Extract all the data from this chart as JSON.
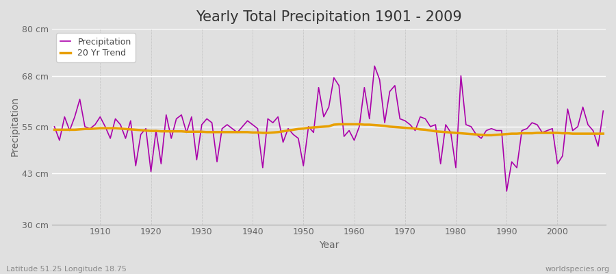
{
  "title": "Yearly Total Precipitation 1901 - 2009",
  "xlabel": "Year",
  "ylabel": "Precipitation",
  "subtitle": "Latitude 51.25 Longitude 18.75",
  "watermark": "worldspecies.org",
  "years": [
    1901,
    1902,
    1903,
    1904,
    1905,
    1906,
    1907,
    1908,
    1909,
    1910,
    1911,
    1912,
    1913,
    1914,
    1915,
    1916,
    1917,
    1918,
    1919,
    1920,
    1921,
    1922,
    1923,
    1924,
    1925,
    1926,
    1927,
    1928,
    1929,
    1930,
    1931,
    1932,
    1933,
    1934,
    1935,
    1936,
    1937,
    1938,
    1939,
    1940,
    1941,
    1942,
    1943,
    1944,
    1945,
    1946,
    1947,
    1948,
    1949,
    1950,
    1951,
    1952,
    1953,
    1954,
    1955,
    1956,
    1957,
    1958,
    1959,
    1960,
    1961,
    1962,
    1963,
    1964,
    1965,
    1966,
    1967,
    1968,
    1969,
    1970,
    1971,
    1972,
    1973,
    1974,
    1975,
    1976,
    1977,
    1978,
    1979,
    1980,
    1981,
    1982,
    1983,
    1984,
    1985,
    1986,
    1987,
    1988,
    1989,
    1990,
    1991,
    1992,
    1993,
    1994,
    1995,
    1996,
    1997,
    1998,
    1999,
    2000,
    2001,
    2002,
    2003,
    2004,
    2005,
    2006,
    2007,
    2008,
    2009
  ],
  "precip": [
    55.0,
    51.5,
    57.5,
    54.0,
    57.5,
    62.0,
    55.0,
    54.5,
    55.5,
    57.5,
    55.0,
    52.0,
    57.0,
    55.5,
    52.0,
    56.5,
    45.0,
    53.0,
    54.5,
    43.5,
    54.0,
    45.5,
    58.0,
    52.0,
    57.0,
    58.0,
    53.5,
    57.5,
    46.5,
    55.5,
    57.0,
    56.0,
    46.0,
    54.5,
    55.5,
    54.5,
    53.5,
    55.0,
    56.5,
    55.5,
    54.5,
    44.5,
    57.0,
    56.0,
    57.5,
    51.0,
    54.5,
    53.0,
    52.0,
    45.0,
    55.0,
    53.5,
    65.0,
    57.5,
    60.0,
    67.5,
    65.5,
    52.5,
    54.0,
    51.5,
    55.0,
    65.0,
    57.0,
    70.5,
    67.0,
    56.0,
    64.0,
    65.5,
    57.0,
    56.5,
    55.5,
    54.0,
    57.5,
    57.0,
    55.0,
    55.5,
    45.5,
    55.5,
    53.5,
    44.5,
    68.0,
    55.5,
    55.0,
    53.0,
    52.0,
    54.0,
    54.5,
    54.0,
    54.0,
    38.5,
    46.0,
    44.5,
    54.0,
    54.5,
    56.0,
    55.5,
    53.5,
    54.0,
    54.5,
    45.5,
    47.5,
    59.5,
    54.0,
    55.0,
    60.0,
    55.5,
    54.0,
    50.0,
    59.0
  ],
  "trend": [
    54.2,
    54.2,
    54.2,
    54.2,
    54.2,
    54.3,
    54.4,
    54.4,
    54.5,
    54.6,
    54.6,
    54.6,
    54.6,
    54.5,
    54.4,
    54.3,
    54.2,
    54.1,
    54.0,
    53.9,
    53.9,
    53.8,
    53.8,
    53.8,
    53.8,
    53.8,
    53.7,
    53.7,
    53.7,
    53.7,
    53.6,
    53.6,
    53.6,
    53.6,
    53.6,
    53.6,
    53.6,
    53.6,
    53.6,
    53.5,
    53.5,
    53.4,
    53.4,
    53.5,
    53.6,
    53.8,
    54.0,
    54.2,
    54.4,
    54.5,
    54.7,
    54.8,
    54.9,
    55.0,
    55.1,
    55.5,
    55.6,
    55.6,
    55.6,
    55.6,
    55.6,
    55.5,
    55.5,
    55.4,
    55.3,
    55.2,
    55.0,
    54.9,
    54.8,
    54.7,
    54.6,
    54.5,
    54.3,
    54.2,
    54.0,
    53.8,
    53.7,
    53.6,
    53.5,
    53.4,
    53.3,
    53.2,
    53.1,
    53.0,
    52.9,
    52.8,
    52.8,
    52.9,
    53.0,
    53.1,
    53.2,
    53.2,
    53.3,
    53.3,
    53.3,
    53.4,
    53.4,
    53.4,
    53.4,
    53.4,
    53.3,
    53.3,
    53.2,
    53.2,
    53.2,
    53.2,
    53.2,
    53.2,
    53.2
  ],
  "precip_color": "#AA00AA",
  "trend_color": "#E8A000",
  "fig_bg_color": "#E0E0E0",
  "plot_bg_color": "#E0E0E0",
  "grid_color_h": "#FFFFFF",
  "grid_color_v": "#C8C8C8",
  "ylim": [
    30,
    80
  ],
  "yticks": [
    30,
    43,
    55,
    68,
    80
  ],
  "ytick_labels": [
    "30 cm",
    "43 cm",
    "55 cm",
    "68 cm",
    "80 cm"
  ],
  "xticks": [
    1910,
    1920,
    1930,
    1940,
    1950,
    1960,
    1970,
    1980,
    1990,
    2000
  ],
  "title_fontsize": 15,
  "axis_label_fontsize": 10,
  "tick_fontsize": 9,
  "legend_fontsize": 9
}
